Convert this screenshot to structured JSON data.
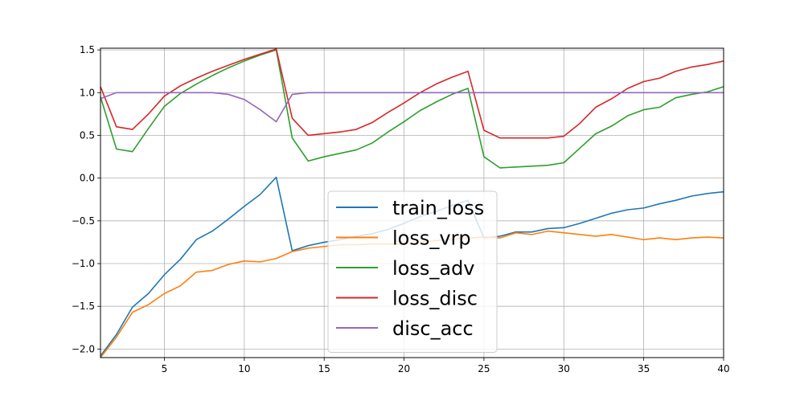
{
  "chart_data": {
    "type": "line",
    "x": [
      1,
      2,
      3,
      4,
      5,
      6,
      7,
      8,
      9,
      10,
      11,
      12,
      13,
      14,
      15,
      16,
      17,
      18,
      19,
      20,
      21,
      22,
      23,
      24,
      25,
      26,
      27,
      28,
      29,
      30,
      31,
      32,
      33,
      34,
      35,
      36,
      37,
      38,
      39,
      40
    ],
    "xlim": [
      1,
      40
    ],
    "ylim": [
      -2.1,
      1.52
    ],
    "xticks": [
      5,
      10,
      15,
      20,
      25,
      30,
      35,
      40
    ],
    "yticks": [
      -2.0,
      -1.5,
      -1.0,
      -0.5,
      0.0,
      0.5,
      1.0,
      1.5
    ],
    "grid": true,
    "legend_position": "center-bottom",
    "series": [
      {
        "name": "train_loss",
        "color": "#1f77b4",
        "values": [
          -2.08,
          -1.83,
          -1.51,
          -1.35,
          -1.13,
          -0.95,
          -0.72,
          -0.62,
          -0.48,
          -0.33,
          -0.19,
          0.01,
          -0.85,
          -0.79,
          -0.75,
          -0.72,
          -0.68,
          -0.65,
          -0.6,
          -0.53,
          -0.45,
          -0.39,
          -0.32,
          -0.26,
          -0.7,
          -0.68,
          -0.63,
          -0.63,
          -0.59,
          -0.58,
          -0.53,
          -0.47,
          -0.41,
          -0.37,
          -0.35,
          -0.3,
          -0.26,
          -0.21,
          -0.18,
          -0.16
        ]
      },
      {
        "name": "loss_vrp",
        "color": "#ff7f0e",
        "values": [
          -2.1,
          -1.86,
          -1.57,
          -1.48,
          -1.35,
          -1.26,
          -1.1,
          -1.08,
          -1.01,
          -0.97,
          -0.98,
          -0.94,
          -0.86,
          -0.82,
          -0.8,
          -0.78,
          -0.78,
          -0.77,
          -0.77,
          -0.77,
          -0.75,
          -0.73,
          -0.72,
          -0.7,
          -0.69,
          -0.7,
          -0.64,
          -0.66,
          -0.62,
          -0.64,
          -0.66,
          -0.68,
          -0.66,
          -0.69,
          -0.72,
          -0.7,
          -0.72,
          -0.7,
          -0.69,
          -0.7
        ]
      },
      {
        "name": "loss_adv",
        "color": "#2ca02c",
        "values": [
          0.95,
          0.34,
          0.31,
          0.58,
          0.84,
          0.99,
          1.1,
          1.2,
          1.29,
          1.37,
          1.44,
          1.5,
          0.47,
          0.2,
          0.25,
          0.29,
          0.33,
          0.41,
          0.54,
          0.66,
          0.79,
          0.89,
          0.98,
          1.05,
          0.25,
          0.12,
          0.13,
          0.14,
          0.15,
          0.18,
          0.35,
          0.52,
          0.61,
          0.73,
          0.8,
          0.83,
          0.94,
          0.98,
          1.01,
          1.07
        ]
      },
      {
        "name": "loss_disc",
        "color": "#d62728",
        "values": [
          1.07,
          0.6,
          0.57,
          0.75,
          0.96,
          1.08,
          1.17,
          1.25,
          1.32,
          1.39,
          1.45,
          1.51,
          0.7,
          0.5,
          0.52,
          0.54,
          0.57,
          0.65,
          0.77,
          0.88,
          1.0,
          1.1,
          1.18,
          1.25,
          0.56,
          0.47,
          0.47,
          0.47,
          0.47,
          0.49,
          0.64,
          0.83,
          0.93,
          1.05,
          1.13,
          1.17,
          1.25,
          1.3,
          1.33,
          1.37
        ]
      },
      {
        "name": "disc_acc",
        "color": "#9467bd",
        "values": [
          0.93,
          1.0,
          1.0,
          1.0,
          1.0,
          1.0,
          1.0,
          1.0,
          0.98,
          0.92,
          0.8,
          0.66,
          0.98,
          1.0,
          1.0,
          1.0,
          1.0,
          1.0,
          1.0,
          1.0,
          1.0,
          1.0,
          1.0,
          1.0,
          1.0,
          1.0,
          1.0,
          1.0,
          1.0,
          1.0,
          1.0,
          1.0,
          1.0,
          1.0,
          1.0,
          1.0,
          1.0,
          1.0,
          1.0,
          1.0
        ]
      }
    ]
  }
}
